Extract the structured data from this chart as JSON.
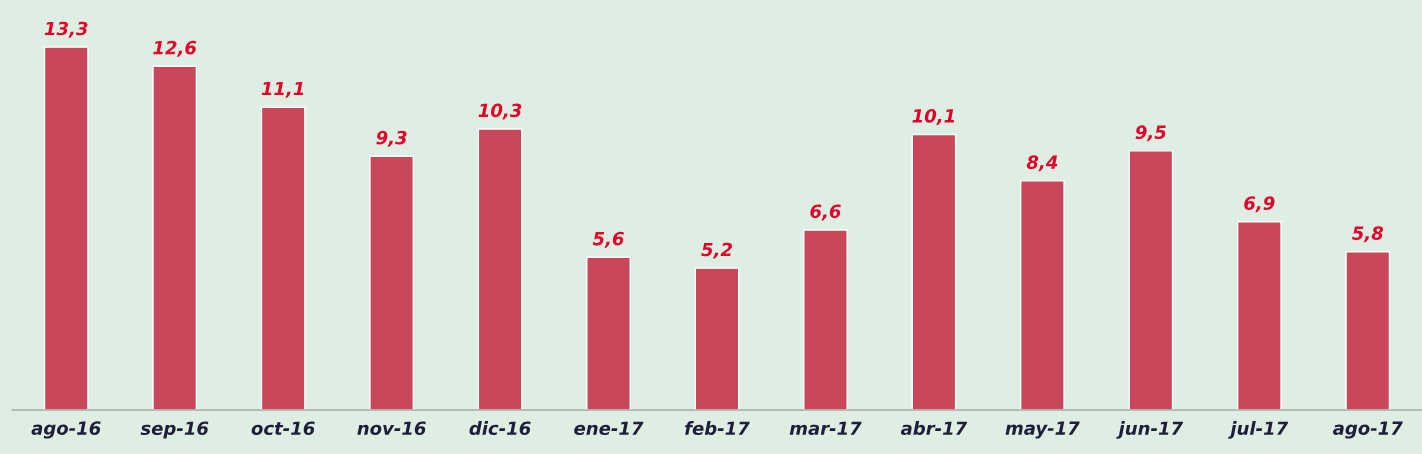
{
  "chart_data": {
    "type": "bar",
    "categories": [
      "ago-16",
      "sep-16",
      "oct-16",
      "nov-16",
      "dic-16",
      "ene-17",
      "feb-17",
      "mar-17",
      "abr-17",
      "may-17",
      "jun-17",
      "jul-17",
      "ago-17"
    ],
    "values": [
      13.3,
      12.6,
      11.1,
      9.3,
      10.3,
      5.6,
      5.2,
      6.6,
      10.1,
      8.4,
      9.5,
      6.9,
      5.8
    ],
    "value_labels": [
      "13,3",
      "12,6",
      "11,1",
      "9,3",
      "10,3",
      "5,6",
      "5,2",
      "6,6",
      "10,1",
      "8,4",
      "9,5",
      "6,9",
      "5,8"
    ],
    "color": "#c9475a",
    "grid": false,
    "legend": false
  }
}
